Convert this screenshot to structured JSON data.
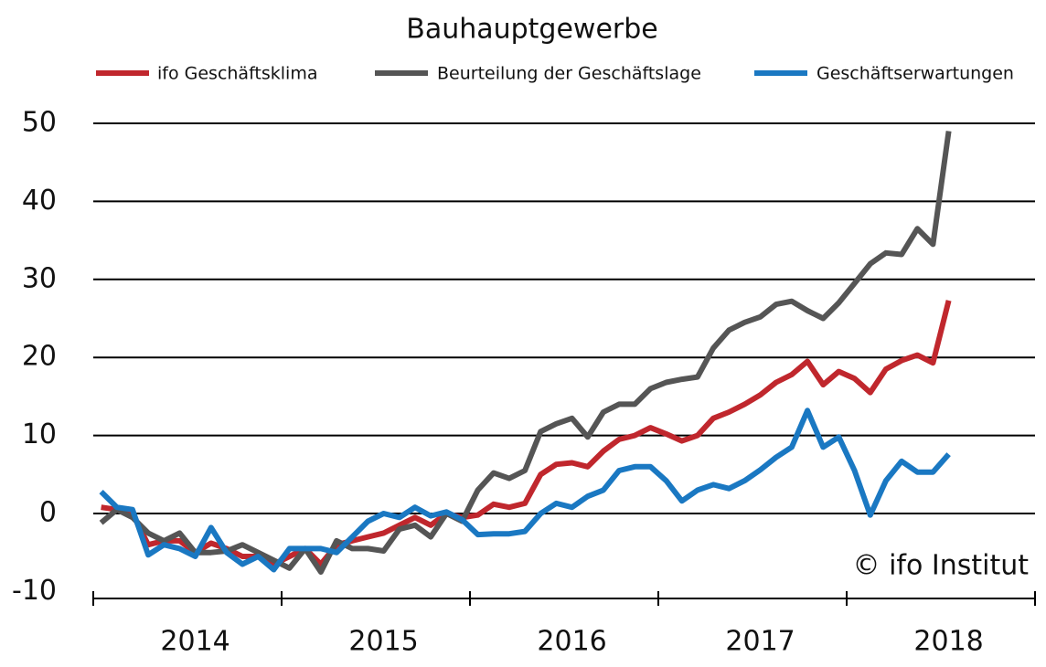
{
  "chart_data": {
    "type": "line",
    "title": "Bauhauptgewerbe",
    "annotation": "© ifo Institut",
    "categories": [
      null,
      null,
      null,
      null,
      null,
      null,
      "2014",
      null,
      null,
      null,
      null,
      null,
      null,
      null,
      null,
      null,
      null,
      null,
      "2015",
      null,
      null,
      null,
      null,
      null,
      null,
      null,
      null,
      null,
      null,
      null,
      "2016",
      null,
      null,
      null,
      null,
      null,
      null,
      null,
      null,
      null,
      null,
      null,
      "2017",
      null,
      null,
      null,
      null,
      null,
      null,
      null,
      null,
      null,
      null,
      null,
      "2018"
    ],
    "series": [
      {
        "name": "ifo Geschäftsklima",
        "color": "#c0272d",
        "values": [
          0.8,
          0.5,
          0,
          -4,
          -3.5,
          -3.5,
          -5,
          -3.8,
          -4.5,
          -5.5,
          -5.5,
          -6.5,
          -5.5,
          -4.5,
          -6.5,
          -4,
          -3.5,
          -3,
          -2.5,
          -1.5,
          -0.5,
          -1.5,
          0,
          -0.5,
          -0.2,
          1.2,
          0.8,
          1.3,
          5,
          6.3,
          6.5,
          6,
          8,
          9.5,
          10,
          11,
          10.2,
          9.3,
          10,
          12.2,
          13,
          14,
          15.2,
          16.8,
          17.8,
          19.5,
          16.5,
          18.2,
          17.3,
          15.5,
          18.5,
          19.6,
          20.3,
          19.3,
          27.3
        ]
      },
      {
        "name": "Beurteilung der Geschäftslage",
        "color": "#555555",
        "values": [
          -1.2,
          0.5,
          -0.5,
          -2.5,
          -3.5,
          -2.5,
          -5,
          -5,
          -4.8,
          -4,
          -5,
          -6,
          -7,
          -4.5,
          -7.5,
          -3.5,
          -4.5,
          -4.5,
          -4.8,
          -2,
          -1.5,
          -3,
          0,
          -1,
          3,
          5.2,
          4.5,
          5.5,
          10.5,
          11.5,
          12.2,
          9.8,
          13,
          14,
          14,
          16,
          16.8,
          17.2,
          17.5,
          21.2,
          23.5,
          24.5,
          25.2,
          26.8,
          27.2,
          26,
          25,
          27,
          29.5,
          32,
          33.4,
          33.2,
          36.5,
          34.5,
          49
        ]
      },
      {
        "name": "Geschäftserwartungen",
        "color": "#1a78c2",
        "values": [
          2.8,
          0.8,
          0.5,
          -5.3,
          -4,
          -4.5,
          -5.5,
          -1.8,
          -5,
          -6.5,
          -5.5,
          -7.2,
          -4.5,
          -4.5,
          -4.5,
          -5,
          -3,
          -1,
          0,
          -0.5,
          0.8,
          -0.3,
          0.2,
          -0.8,
          -2.7,
          -2.6,
          -2.6,
          -2.3,
          0,
          1.3,
          0.8,
          2.2,
          3,
          5.5,
          6,
          6,
          4.2,
          1.6,
          3,
          3.7,
          3.2,
          4.2,
          5.6,
          7.2,
          8.5,
          13.2,
          8.5,
          9.8,
          5.5,
          -0.2,
          4.2,
          6.7,
          5.3,
          5.3,
          7.6
        ]
      }
    ],
    "ylim": [
      -10,
      50
    ],
    "yticks": [
      -10,
      0,
      10,
      20,
      30,
      40,
      50
    ],
    "grid": true
  }
}
